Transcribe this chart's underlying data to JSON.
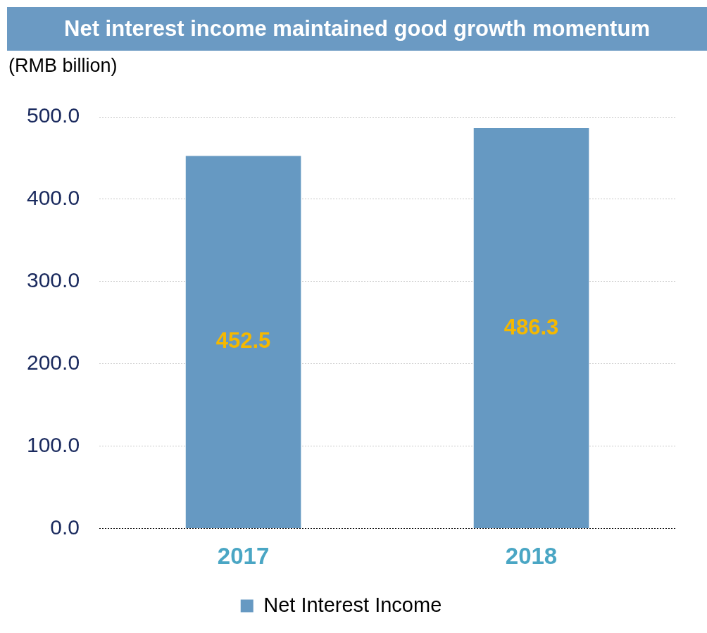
{
  "chart_data": {
    "type": "bar",
    "title": "Net interest income maintained good growth momentum",
    "ylabel": "(RMB billion)",
    "categories": [
      "2017",
      "2018"
    ],
    "series": [
      {
        "name": "Net Interest Income",
        "color": "#6699c2",
        "values": [
          452.5,
          486.3
        ]
      }
    ],
    "ylim": [
      0,
      500
    ],
    "yticks": [
      {
        "value": 0,
        "label": "0.0"
      },
      {
        "value": 100,
        "label": "100.0"
      },
      {
        "value": 200,
        "label": "200.0"
      },
      {
        "value": 300,
        "label": "300.0"
      },
      {
        "value": 400,
        "label": "400.0"
      },
      {
        "value": 500,
        "label": "500.0"
      }
    ],
    "grid": "y",
    "legend": "bottom",
    "data_labels": true
  }
}
